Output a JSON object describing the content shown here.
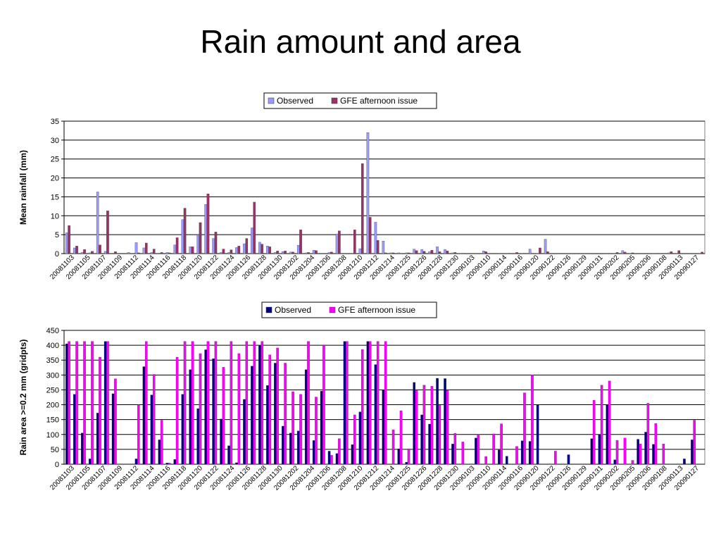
{
  "slide": {
    "title": "Rain amount and area"
  },
  "chart_data": [
    {
      "type": "bar",
      "title": "",
      "ylabel": "Mean rainfall (mm)",
      "ylim": [
        0,
        35
      ],
      "yticks": [
        0,
        5,
        10,
        15,
        20,
        25,
        30,
        35
      ],
      "legend_position": "top",
      "grid": true,
      "xtick_labels": [
        "20081103",
        "20081105",
        "20081107",
        "20081109",
        "20081112",
        "20081114",
        "20081116",
        "20081118",
        "20081120",
        "20081122",
        "20081124",
        "20081126",
        "20081128",
        "20081130",
        "20081202",
        "20081204",
        "20081206",
        "20081208",
        "20081210",
        "20081212",
        "20081214",
        "20081225",
        "20081226",
        "20081228",
        "20081230",
        "20090103",
        "20090110",
        "20090114",
        "20090116",
        "20090120",
        "20090122",
        "20090126",
        "20090129",
        "20090131",
        "20090202",
        "20090205",
        "20090206",
        "20090108",
        "20090113",
        "20090127"
      ],
      "series": [
        {
          "name": "Observed",
          "color": "#9999ff",
          "values": [
            5.5,
            1.5,
            0.3,
            0.2,
            16.3,
            0.6,
            0,
            0,
            0.3,
            2.9,
            1.5,
            0.3,
            0,
            0.3,
            2.3,
            9,
            1.8,
            5,
            13,
            4,
            0.3,
            0.3,
            1.6,
            2.6,
            6.8,
            3,
            2,
            0.3,
            0.5,
            0.4,
            2.2,
            0.2,
            0.9,
            0,
            0.3,
            5.2,
            0,
            0,
            1.3,
            32,
            8.3,
            3.3,
            0.2,
            0.2,
            0.2,
            1.2,
            1.1,
            0.5,
            1.8,
            1.1,
            0.2,
            0.1,
            0,
            0,
            0.7,
            0,
            0.1,
            0.1,
            0.1,
            0.1,
            1.2,
            0.1,
            3.8,
            0,
            0,
            0,
            0,
            0,
            0,
            0,
            0.1,
            0.1,
            0.8,
            0.1,
            0,
            0,
            0.1,
            0,
            0.2,
            0.1,
            0,
            0,
            0.1
          ]
        },
        {
          "name": "GFE afternoon issue",
          "color": "#993366",
          "values": [
            7.4,
            2,
            1.1,
            0.6,
            2.3,
            11.3,
            0.5,
            0,
            0,
            0.2,
            2.8,
            1.2,
            0.3,
            0.2,
            4.2,
            12,
            1.8,
            8.2,
            15.8,
            5.7,
            1.2,
            1,
            2,
            4,
            13.6,
            2.5,
            1.8,
            0.7,
            0.7,
            0.4,
            6.3,
            0.3,
            0.8,
            0,
            0.4,
            6,
            0,
            6.3,
            23.8,
            9.6,
            3.5,
            0.2,
            0.2,
            0.1,
            0.2,
            0.8,
            0.6,
            0.9,
            0.5,
            0.7,
            0.3,
            0.1,
            0,
            0,
            0.5,
            0,
            0,
            0.1,
            0.3,
            0.1,
            0.1,
            1.5,
            0.5,
            0,
            0,
            0,
            0,
            0,
            0,
            0,
            0.1,
            0.3,
            0.4,
            0.2,
            0,
            0,
            0,
            0,
            0.5,
            0.8,
            0,
            0,
            0.4
          ]
        }
      ]
    },
    {
      "type": "bar",
      "title": "",
      "ylabel": "Rain area >=0.2 mm (gridpts)",
      "ylim": [
        0,
        450
      ],
      "yticks": [
        0,
        50,
        100,
        150,
        200,
        250,
        300,
        350,
        400,
        450
      ],
      "legend_position": "top",
      "grid": true,
      "xtick_labels": [
        "20081103",
        "20081105",
        "20081107",
        "20081109",
        "20081112",
        "20081114",
        "20081116",
        "20081118",
        "20081120",
        "20081122",
        "20081124",
        "20081126",
        "20081128",
        "20081130",
        "20081202",
        "20081204",
        "20081206",
        "20081208",
        "20081210",
        "20081212",
        "20081214",
        "20081225",
        "20081226",
        "20081228",
        "20081230",
        "20090103",
        "20090110",
        "20090114",
        "20090116",
        "20090120",
        "20090122",
        "20090126",
        "20090129",
        "20090131",
        "20090202",
        "20090205",
        "20090206",
        "20090108",
        "20090113",
        "20090127"
      ],
      "series": [
        {
          "name": "Observed",
          "color": "#000080",
          "values": [
            405,
            235,
            105,
            18,
            172,
            413,
            237,
            0,
            0,
            18,
            328,
            233,
            82,
            4,
            16,
            235,
            318,
            187,
            385,
            355,
            152,
            62,
            5,
            218,
            330,
            400,
            265,
            340,
            128,
            105,
            112,
            318,
            80,
            246,
            44,
            36,
            413,
            66,
            176,
            413,
            335,
            250,
            0,
            52,
            7,
            275,
            166,
            135,
            289,
            288,
            68,
            0,
            0,
            88,
            0,
            0,
            48,
            27,
            0,
            79,
            77,
            200,
            0,
            0,
            0,
            32,
            0,
            0,
            86,
            100,
            200,
            15,
            0,
            0,
            84,
            108,
            67,
            0,
            0,
            0,
            18,
            82,
            0
          ]
        },
        {
          "name": "GFE afternoon issue",
          "color": "#ff00ff",
          "values": [
            413,
            413,
            413,
            413,
            360,
            413,
            287,
            0,
            0,
            200,
            413,
            302,
            148,
            4,
            360,
            413,
            413,
            372,
            413,
            413,
            326,
            413,
            372,
            413,
            413,
            413,
            368,
            391,
            340,
            244,
            235,
            413,
            226,
            400,
            30,
            86,
            413,
            166,
            386,
            413,
            413,
            413,
            116,
            180,
            52,
            248,
            266,
            262,
            198,
            248,
            104,
            75,
            0,
            100,
            26,
            102,
            136,
            0,
            60,
            240,
            300,
            0,
            0,
            44,
            0,
            0,
            0,
            0,
            215,
            266,
            280,
            80,
            88,
            13,
            68,
            205,
            137,
            68,
            0,
            0,
            0,
            148,
            0
          ]
        }
      ]
    }
  ]
}
